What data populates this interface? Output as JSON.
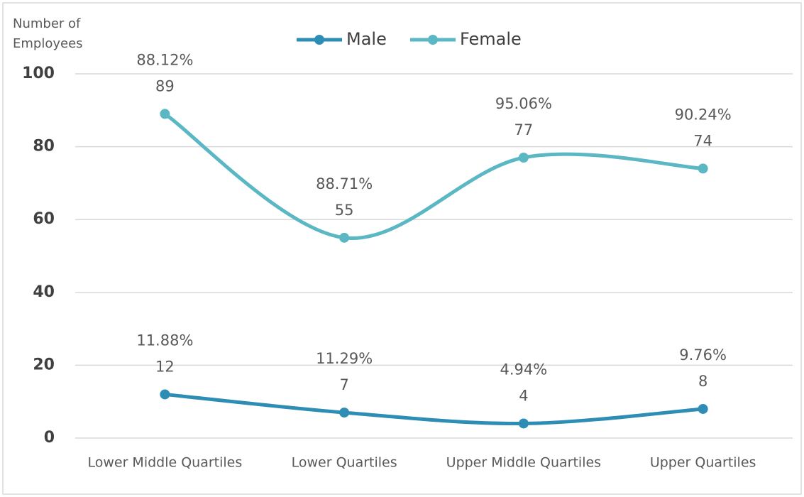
{
  "chart_data": {
    "type": "line",
    "y_label": "Number of Employees",
    "categories": [
      "Lower Middle Quartiles",
      "Lower Quartiles",
      "Upper Middle Quartiles",
      "Upper Quartiles"
    ],
    "series": [
      {
        "name": "Male",
        "color": "#2e8db4",
        "values": [
          12,
          7,
          4,
          8
        ],
        "percent_labels": [
          "11.88%",
          "11.29%",
          "4.94%",
          "9.76%"
        ]
      },
      {
        "name": "Female",
        "color": "#5ab7c3",
        "values": [
          89,
          55,
          77,
          74
        ],
        "percent_labels": [
          "88.12%",
          "88.71%",
          "95.06%",
          "90.24%"
        ]
      }
    ],
    "ylim": [
      0,
      100
    ],
    "yticks": [
      0,
      20,
      40,
      60,
      80,
      100
    ],
    "grid": true,
    "smooth": true,
    "legend": "top"
  }
}
